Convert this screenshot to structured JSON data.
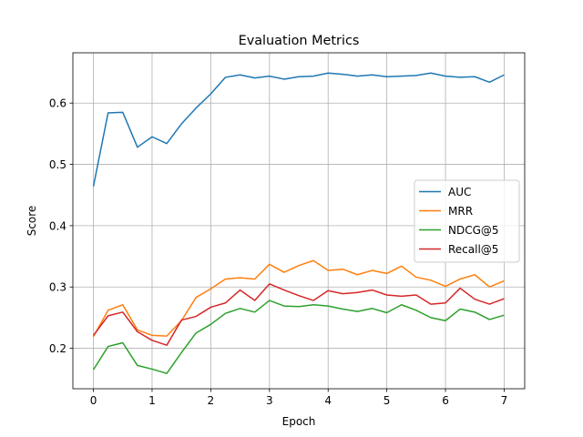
{
  "chart_data": {
    "type": "line",
    "title": "Evaluation Metrics",
    "xlabel": "Epoch",
    "ylabel": "Score",
    "xlim": [
      -0.35,
      7.35
    ],
    "ylim": [
      0.134,
      0.682
    ],
    "xticks": [
      0,
      1,
      2,
      3,
      4,
      5,
      6,
      7
    ],
    "yticks": [
      0.2,
      0.3,
      0.4,
      0.5,
      0.6
    ],
    "ytick_labels": [
      "0.2",
      "0.3",
      "0.4",
      "0.5",
      "0.6"
    ],
    "grid": true,
    "legend_position": "center-right",
    "x": [
      0,
      0.25,
      0.5,
      0.75,
      1,
      1.25,
      1.5,
      1.75,
      2,
      2.25,
      2.5,
      2.75,
      3,
      3.25,
      3.5,
      3.75,
      4,
      4.25,
      4.5,
      4.75,
      5,
      5.25,
      5.5,
      5.75,
      6,
      6.25,
      6.5,
      6.75,
      7
    ],
    "series": [
      {
        "name": "AUC",
        "color": "#1f77b4",
        "values": [
          0.464,
          0.584,
          0.585,
          0.528,
          0.545,
          0.534,
          0.566,
          0.592,
          0.615,
          0.642,
          0.646,
          0.641,
          0.644,
          0.639,
          0.643,
          0.644,
          0.649,
          0.647,
          0.644,
          0.646,
          0.643,
          0.644,
          0.645,
          0.649,
          0.644,
          0.642,
          0.643,
          0.634,
          0.646
        ]
      },
      {
        "name": "MRR",
        "color": "#ff7f0e",
        "values": [
          0.219,
          0.262,
          0.271,
          0.23,
          0.221,
          0.22,
          0.245,
          0.283,
          0.297,
          0.313,
          0.315,
          0.313,
          0.337,
          0.324,
          0.335,
          0.343,
          0.327,
          0.329,
          0.32,
          0.327,
          0.322,
          0.334,
          0.316,
          0.311,
          0.301,
          0.313,
          0.32,
          0.3,
          0.31
        ]
      },
      {
        "name": "NDCG@5",
        "color": "#2ca02c",
        "values": [
          0.165,
          0.203,
          0.209,
          0.172,
          0.166,
          0.159,
          0.193,
          0.225,
          0.239,
          0.257,
          0.265,
          0.259,
          0.278,
          0.269,
          0.268,
          0.271,
          0.269,
          0.264,
          0.26,
          0.265,
          0.258,
          0.271,
          0.262,
          0.25,
          0.245,
          0.264,
          0.259,
          0.247,
          0.254
        ]
      },
      {
        "name": "Recall@5",
        "color": "#d62728",
        "values": [
          0.221,
          0.253,
          0.259,
          0.227,
          0.213,
          0.205,
          0.246,
          0.252,
          0.267,
          0.274,
          0.295,
          0.278,
          0.305,
          0.295,
          0.286,
          0.278,
          0.294,
          0.289,
          0.291,
          0.295,
          0.287,
          0.285,
          0.287,
          0.272,
          0.274,
          0.298,
          0.28,
          0.272,
          0.281
        ]
      }
    ]
  }
}
